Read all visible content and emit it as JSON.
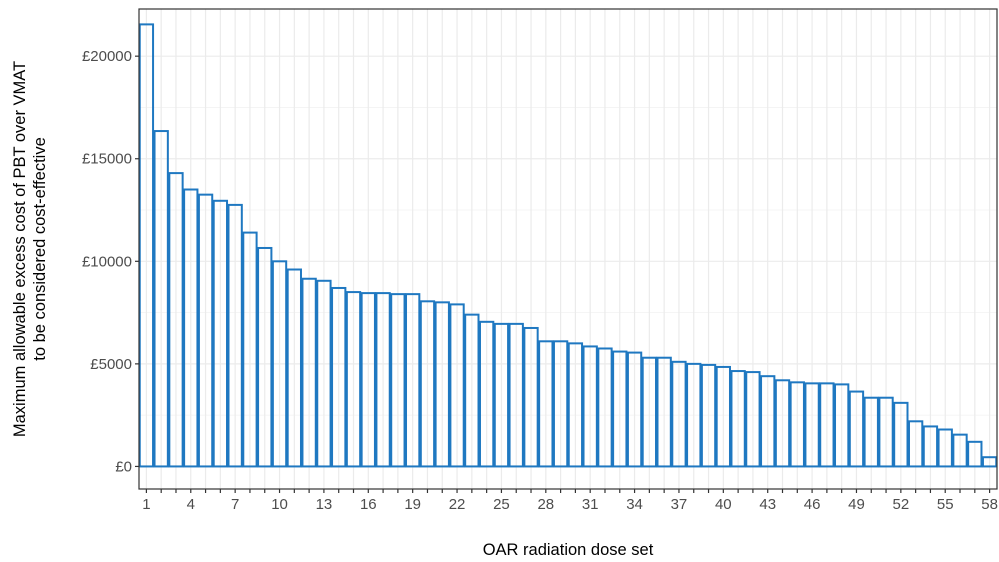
{
  "colors": {
    "bar_outline": "#1f78c1",
    "grid_major": "#ebebeb",
    "grid_minor": "#f2f2f2",
    "panel_border": "#333333",
    "tick_text": "#4d4d4d"
  },
  "chart_data": {
    "type": "bar",
    "bar_style": "outline",
    "xlabel": "OAR radiation dose set",
    "ylabel_lines": [
      "Maximum allowable excess cost of PBT over VMAT",
      "to be considered cost-effective"
    ],
    "ylim": [
      -1100,
      22300
    ],
    "yticks": [
      0,
      5000,
      10000,
      15000,
      20000
    ],
    "ytick_labels": [
      "£0",
      "£5000",
      "£10000",
      "£15000",
      "£20000"
    ],
    "xtick_labels": [
      "1",
      "4",
      "7",
      "10",
      "13",
      "16",
      "19",
      "22",
      "25",
      "28",
      "31",
      "34",
      "37",
      "40",
      "43",
      "46",
      "49",
      "52",
      "55",
      "58"
    ],
    "xtick_every": 3,
    "grid": true,
    "categories": [
      "1",
      "2",
      "3",
      "4",
      "5",
      "6",
      "7",
      "8",
      "9",
      "10",
      "11",
      "12",
      "13",
      "14",
      "15",
      "16",
      "17",
      "18",
      "19",
      "20",
      "21",
      "22",
      "23",
      "24",
      "25",
      "26",
      "27",
      "28",
      "29",
      "30",
      "31",
      "32",
      "33",
      "34",
      "35",
      "36",
      "37",
      "38",
      "39",
      "40",
      "41",
      "42",
      "43",
      "44",
      "45",
      "46",
      "47",
      "48",
      "49",
      "50",
      "51",
      "52",
      "53",
      "54",
      "55",
      "56",
      "57",
      "58"
    ],
    "values": [
      21550,
      16350,
      14300,
      13500,
      13250,
      12950,
      12750,
      11400,
      10650,
      10000,
      9600,
      9150,
      9050,
      8700,
      8500,
      8450,
      8450,
      8400,
      8400,
      8050,
      8000,
      7900,
      7400,
      7050,
      6950,
      6950,
      6750,
      6100,
      6100,
      6000,
      5850,
      5750,
      5600,
      5550,
      5300,
      5300,
      5100,
      5000,
      4950,
      4850,
      4650,
      4600,
      4400,
      4200,
      4100,
      4050,
      4050,
      4000,
      3650,
      3350,
      3350,
      3100,
      2200,
      1950,
      1800,
      1550,
      1200,
      450
    ]
  }
}
